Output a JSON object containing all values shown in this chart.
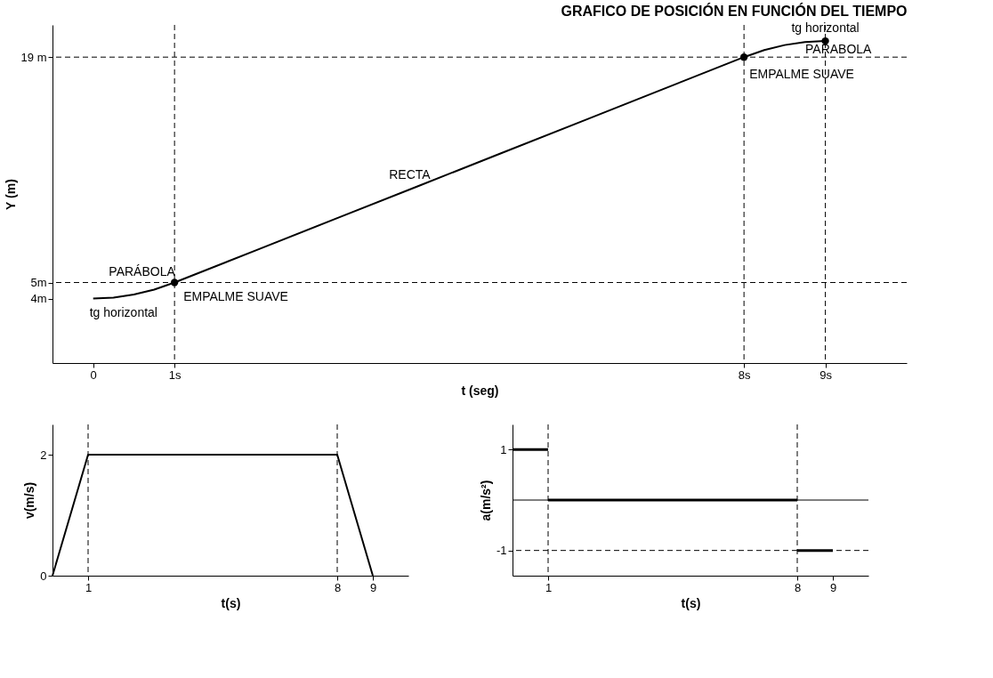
{
  "chart_data": [
    {
      "type": "line",
      "title": "GRAFICO DE POSICIÓN EN FUNCIÓN DEL TIEMPO",
      "xlabel": "t (seg)",
      "ylabel": "Y (m)",
      "xlim": [
        -0.5,
        10
      ],
      "ylim": [
        0,
        21
      ],
      "xticks": [
        0,
        {
          "value": 1,
          "label": "1s"
        },
        {
          "value": 8,
          "label": "8s"
        },
        {
          "value": 9,
          "label": "9s"
        }
      ],
      "yticks": [
        {
          "value": 4,
          "label": "4m"
        },
        {
          "value": 5,
          "label": "5m"
        },
        {
          "value": 19,
          "label": "19 m"
        }
      ],
      "series": [
        {
          "color": "#000000",
          "x": [
            0,
            0.25,
            0.5,
            0.75,
            1,
            2,
            3,
            4,
            5,
            6,
            7,
            8,
            8.25,
            8.5,
            8.75,
            9
          ],
          "values": [
            4,
            4.06,
            4.25,
            4.56,
            5,
            7,
            9,
            11,
            13,
            15,
            17,
            19,
            19.44,
            19.75,
            19.94,
            20
          ]
        },
        {
          "type": "scatter",
          "color": "#000000",
          "marker": "circle",
          "x": [
            1,
            8,
            9
          ],
          "values": [
            5,
            19,
            20
          ]
        }
      ],
      "ref_lines": [
        {
          "axis": "y",
          "value": 5,
          "line_style": "dashed"
        },
        {
          "axis": "y",
          "value": 19,
          "line_style": "dashed"
        },
        {
          "axis": "x",
          "value": 1,
          "line_style": "dashed"
        },
        {
          "axis": "x",
          "value": 8,
          "line_style": "dashed"
        },
        {
          "axis": "x",
          "value": 9,
          "line_style": "dashed"
        }
      ],
      "annotations": [
        {
          "text": "tg horizontal",
          "x": 0,
          "y": 4
        },
        {
          "text": "PARÁBOLA",
          "x": 0.6,
          "y": 4.4
        },
        {
          "text": "EMPALME SUAVE",
          "x": 1,
          "y": 5
        },
        {
          "text": "RECTA",
          "x": 4,
          "y": 11
        },
        {
          "text": "EMPALME SUAVE",
          "x": 8,
          "y": 19
        },
        {
          "text": "PARABOLA",
          "x": 8.6,
          "y": 19.8
        },
        {
          "text": "tg horizontal",
          "x": 9,
          "y": 20
        }
      ],
      "grid": false
    },
    {
      "type": "line",
      "xlabel": "t(s)",
      "ylabel": "v(m/s)",
      "xlim": [
        0,
        10
      ],
      "ylim": [
        0,
        2.5
      ],
      "xticks": [
        1,
        8,
        9
      ],
      "yticks": [
        0,
        2
      ],
      "series": [
        {
          "color": "#000000",
          "x": [
            0,
            1,
            8,
            9
          ],
          "values": [
            0,
            2,
            2,
            0
          ]
        }
      ],
      "ref_lines": [
        {
          "axis": "x",
          "value": 1,
          "line_style": "dashed"
        },
        {
          "axis": "x",
          "value": 8,
          "line_style": "dashed"
        }
      ],
      "grid": false
    },
    {
      "type": "line",
      "xlabel": "t(s)",
      "ylabel": "a(m/s²)",
      "xlim": [
        0,
        10
      ],
      "ylim": [
        -1.5,
        1.5
      ],
      "xticks": [
        1,
        8,
        9
      ],
      "yticks": [
        1,
        -1
      ],
      "series": [
        {
          "color": "#000000",
          "x": [
            0,
            1
          ],
          "values": [
            1,
            1
          ]
        },
        {
          "color": "#000000",
          "x": [
            1,
            8
          ],
          "values": [
            0,
            0
          ]
        },
        {
          "color": "#000000",
          "x": [
            8,
            9
          ],
          "values": [
            -1,
            -1
          ]
        }
      ],
      "ref_lines": [
        {
          "axis": "y",
          "value": 0,
          "line_style": "solid"
        },
        {
          "axis": "x",
          "value": 1,
          "line_style": "dashed"
        },
        {
          "axis": "x",
          "value": 8,
          "line_style": "dashed"
        },
        {
          "axis": "y",
          "value": -1,
          "line_style": "dashed"
        }
      ],
      "grid": false
    }
  ]
}
